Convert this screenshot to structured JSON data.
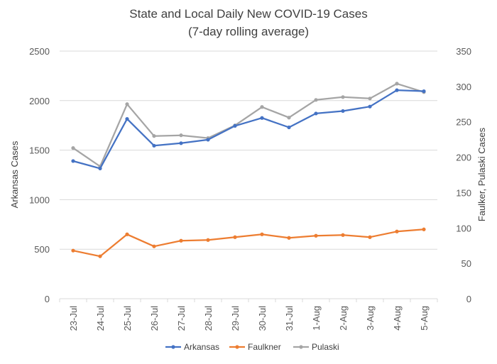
{
  "chart_data": {
    "type": "line",
    "title": "State and Local Daily New COVID-19 Cases",
    "subtitle": "(7-day rolling average)",
    "ylabel": "Arkansas Cases",
    "y2label": "Faulker, Pulaski Cases",
    "xlabel": "",
    "categories": [
      "23-Jul",
      "24-Jul",
      "25-Jul",
      "26-Jul",
      "27-Jul",
      "28-Jul",
      "29-Jul",
      "30-Jul",
      "31-Jul",
      "1-Aug",
      "2-Aug",
      "3-Aug",
      "4-Aug",
      "5-Aug"
    ],
    "ylim": [
      0,
      2500
    ],
    "y2lim": [
      0,
      350
    ],
    "yticks": [
      "0",
      "500",
      "1000",
      "1500",
      "2000",
      "2500"
    ],
    "y2ticks": [
      "0",
      "50",
      "100",
      "150",
      "200",
      "250",
      "300",
      "350"
    ],
    "grid": true,
    "legend_position": "bottom",
    "series": [
      {
        "name": "Arkansas",
        "axis": "left",
        "color": "#4472C4",
        "values": [
          1390,
          1315,
          1815,
          1545,
          1570,
          1605,
          1745,
          1825,
          1730,
          1870,
          1895,
          1940,
          2105,
          2095
        ]
      },
      {
        "name": "Faulkner",
        "axis": "right",
        "color": "#ED7D31",
        "values": [
          68,
          60,
          91,
          74,
          82,
          83,
          87,
          91,
          86,
          89,
          90,
          87,
          95,
          98
        ]
      },
      {
        "name": "Pulaski",
        "axis": "right",
        "color": "#A5A5A5",
        "values": [
          213,
          187,
          275,
          230,
          231,
          227,
          245,
          271,
          256,
          281,
          285,
          283,
          304,
          292
        ]
      }
    ]
  }
}
